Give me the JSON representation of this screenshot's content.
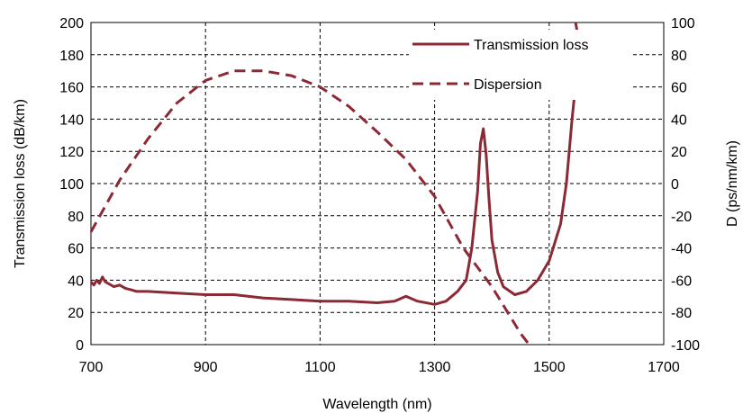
{
  "chart_data": {
    "type": "line",
    "xlabel": "Wavelength (nm)",
    "ylabel_left": "Transmission loss (dB/km)",
    "ylabel_right": "D (ps/nm/km)",
    "xlim": [
      700,
      1700
    ],
    "ylim_left": [
      0,
      200
    ],
    "ylim_right": [
      -100,
      100
    ],
    "xticks": [
      700,
      900,
      1100,
      1300,
      1500,
      1700
    ],
    "yticks_left": [
      0,
      20,
      40,
      60,
      80,
      100,
      120,
      140,
      160,
      180,
      200
    ],
    "yticks_right": [
      -100,
      -80,
      -60,
      -40,
      -20,
      0,
      20,
      40,
      60,
      80,
      100
    ],
    "grid": true,
    "legend_position": "top-right",
    "line_color": "#8b2a35",
    "series": [
      {
        "name": "Transmission loss",
        "axis": "left",
        "style": "solid",
        "x": [
          700,
          705,
          710,
          715,
          720,
          725,
          730,
          740,
          750,
          760,
          770,
          780,
          800,
          850,
          900,
          950,
          1000,
          1050,
          1100,
          1150,
          1200,
          1230,
          1250,
          1270,
          1300,
          1320,
          1340,
          1355,
          1365,
          1375,
          1380,
          1385,
          1390,
          1395,
          1400,
          1410,
          1420,
          1440,
          1460,
          1480,
          1500,
          1520,
          1530,
          1540,
          1548
        ],
        "y": [
          39,
          37,
          40,
          38,
          42,
          39,
          38,
          36,
          37,
          35,
          34,
          33,
          33,
          32,
          31,
          31,
          29,
          28,
          27,
          27,
          26,
          27,
          30,
          27,
          25,
          27,
          33,
          40,
          60,
          95,
          125,
          134,
          118,
          90,
          65,
          45,
          36,
          31,
          33,
          40,
          52,
          75,
          100,
          140,
          168
        ]
      },
      {
        "name": "Dispersion",
        "axis": "right",
        "style": "dashed",
        "x": [
          700,
          750,
          800,
          850,
          900,
          950,
          1000,
          1050,
          1100,
          1150,
          1200,
          1250,
          1300,
          1350,
          1400,
          1450,
          1465
        ],
        "y": [
          -30,
          2,
          28,
          50,
          64,
          70,
          70,
          67,
          60,
          48,
          32,
          15,
          -8,
          -40,
          -64,
          -93,
          -100
        ]
      },
      {
        "name": "",
        "axis": "right",
        "style": "dashed",
        "x": [
          1546,
          1549
        ],
        "y": [
          100,
          94
        ]
      }
    ]
  }
}
